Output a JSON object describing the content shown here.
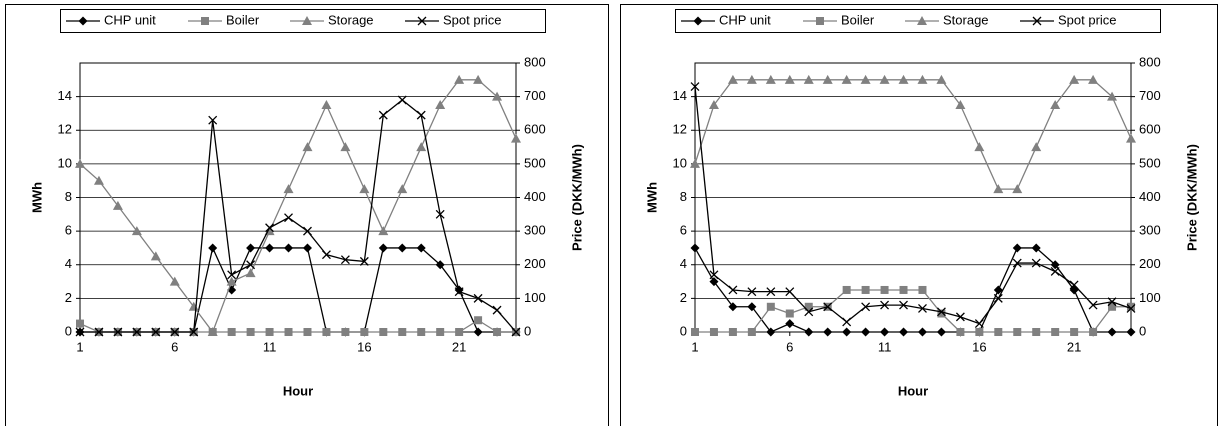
{
  "chart_data": [
    {
      "type": "line",
      "x_label": "Hour",
      "y_label": "MWh",
      "y2_label": "Price (DKK/MWh)",
      "x": [
        1,
        2,
        3,
        4,
        5,
        6,
        7,
        8,
        9,
        10,
        11,
        12,
        13,
        14,
        15,
        16,
        17,
        18,
        19,
        20,
        21,
        22,
        23,
        24
      ],
      "xlim": [
        1,
        24
      ],
      "xticks": [
        1,
        6,
        11,
        16,
        21
      ],
      "ylim": [
        0,
        16
      ],
      "yticks": [
        0,
        2,
        4,
        6,
        8,
        10,
        12,
        14
      ],
      "y2lim": [
        0,
        800
      ],
      "y2ticks": [
        0,
        100,
        200,
        300,
        400,
        500,
        600,
        700,
        800
      ],
      "grid": true,
      "legend": "top",
      "series": [
        {
          "name": "CHP unit",
          "color": "#000000",
          "marker": "diamond",
          "values": [
            0,
            0,
            0,
            0,
            0,
            0,
            0,
            5,
            2.5,
            5,
            5,
            5,
            5,
            0,
            0,
            0,
            5,
            5,
            5,
            4,
            2.5,
            0,
            0,
            0
          ]
        },
        {
          "name": "Boiler",
          "color": "#808080",
          "marker": "square",
          "values": [
            0.5,
            0,
            0,
            0,
            0,
            0,
            0,
            0,
            0,
            0,
            0,
            0,
            0,
            0,
            0,
            0,
            0,
            0,
            0,
            0,
            0,
            0.7,
            0,
            0
          ]
        },
        {
          "name": "Storage",
          "color": "#808080",
          "marker": "triangle",
          "values": [
            10,
            9,
            7.5,
            6,
            4.5,
            3,
            1.5,
            0,
            3,
            3.5,
            6,
            8.5,
            11,
            13.5,
            11,
            8.5,
            6,
            8.5,
            11,
            13.5,
            15,
            15,
            14,
            11.5
          ]
        },
        {
          "name": "Spot price",
          "color": "#000000",
          "marker": "x",
          "axis": "y2",
          "values": [
            0,
            0,
            0,
            0,
            0,
            0,
            0,
            630,
            170,
            200,
            310,
            340,
            300,
            230,
            215,
            210,
            645,
            690,
            645,
            350,
            120,
            100,
            65,
            0
          ]
        }
      ]
    },
    {
      "type": "line",
      "x_label": "Hour",
      "y_label": "MWh",
      "y2_label": "Price (DKK/MWh)",
      "x": [
        1,
        2,
        3,
        4,
        5,
        6,
        7,
        8,
        9,
        10,
        11,
        12,
        13,
        14,
        15,
        16,
        17,
        18,
        19,
        20,
        21,
        22,
        23,
        24
      ],
      "xlim": [
        1,
        24
      ],
      "xticks": [
        1,
        6,
        11,
        16,
        21
      ],
      "ylim": [
        0,
        16
      ],
      "yticks": [
        0,
        2,
        4,
        6,
        8,
        10,
        12,
        14
      ],
      "y2lim": [
        0,
        800
      ],
      "y2ticks": [
        0,
        100,
        200,
        300,
        400,
        500,
        600,
        700,
        800
      ],
      "grid": true,
      "legend": "top",
      "series": [
        {
          "name": "CHP unit",
          "color": "#000000",
          "marker": "diamond",
          "values": [
            5,
            3,
            1.5,
            1.5,
            0,
            0.5,
            0,
            0,
            0,
            0,
            0,
            0,
            0,
            0,
            0,
            0,
            2.5,
            5,
            5,
            4,
            2.5,
            0,
            0,
            0
          ]
        },
        {
          "name": "Boiler",
          "color": "#808080",
          "marker": "square",
          "values": [
            0,
            0,
            0,
            0,
            1.5,
            1.1,
            1.5,
            1.5,
            2.5,
            2.5,
            2.5,
            2.5,
            2.5,
            1.1,
            0,
            0,
            0,
            0,
            0,
            0,
            0,
            0,
            1.5,
            1.5
          ]
        },
        {
          "name": "Storage",
          "color": "#808080",
          "marker": "triangle",
          "values": [
            10,
            13.5,
            15,
            15,
            15,
            15,
            15,
            15,
            15,
            15,
            15,
            15,
            15,
            15,
            13.5,
            11,
            8.5,
            8.5,
            11,
            13.5,
            15,
            15,
            14,
            11.5
          ]
        },
        {
          "name": "Spot price",
          "color": "#000000",
          "marker": "x",
          "axis": "y2",
          "values": [
            730,
            170,
            125,
            120,
            120,
            120,
            60,
            75,
            30,
            75,
            80,
            80,
            70,
            60,
            45,
            25,
            100,
            205,
            205,
            180,
            140,
            80,
            90,
            70
          ]
        }
      ]
    }
  ]
}
